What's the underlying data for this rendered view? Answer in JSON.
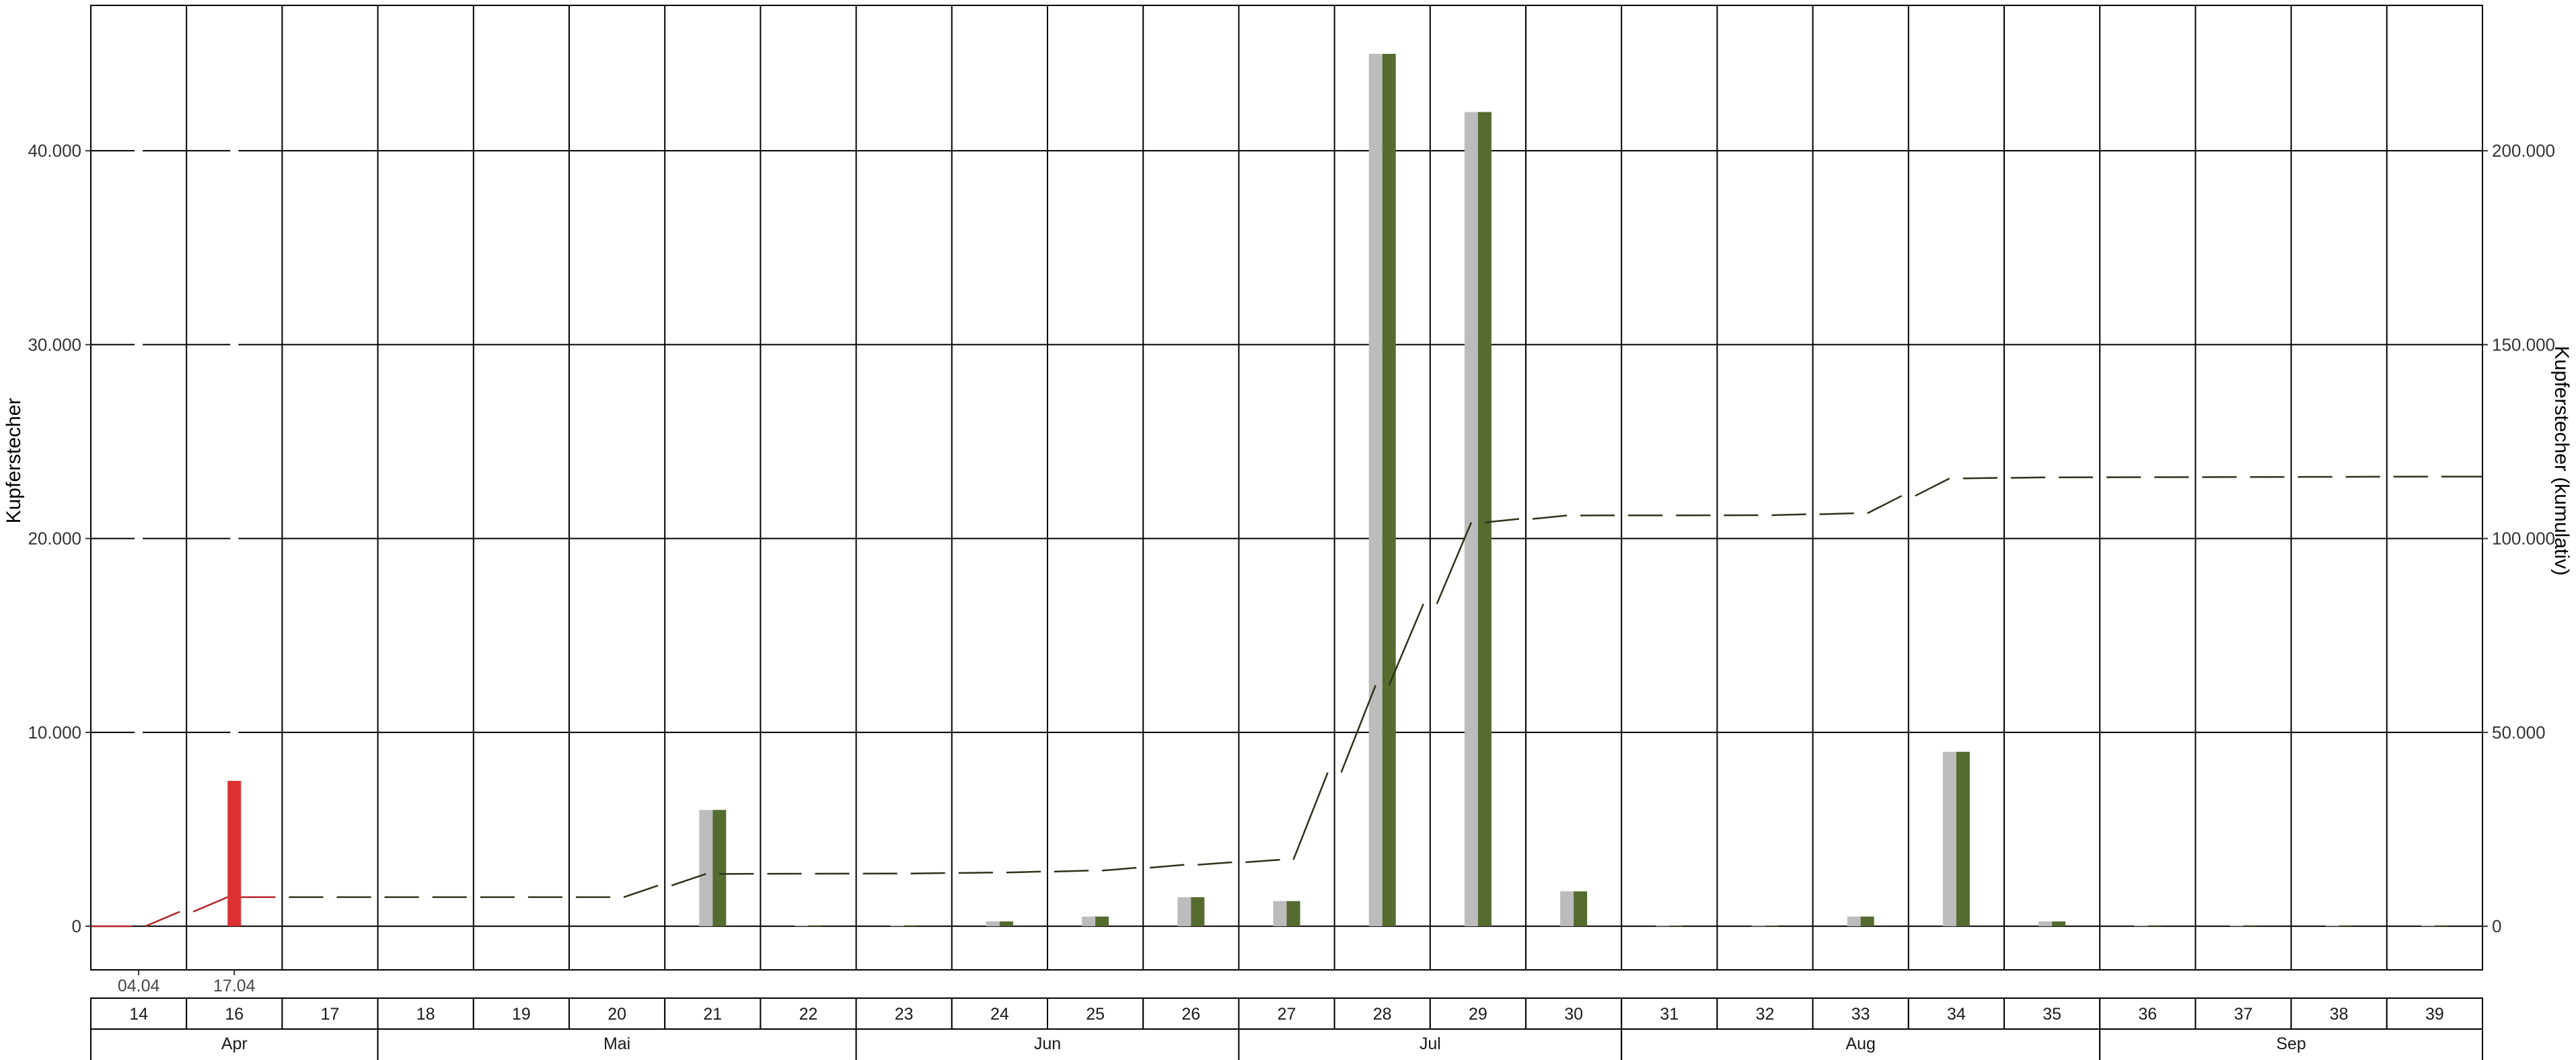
{
  "chart_data": {
    "type": "bar",
    "ylabel": "Kupferstecher",
    "ylabel_right": "Kupferstecher (kumulativ)",
    "ylim": [
      -2250,
      47500
    ],
    "ylim_right": [
      -11250,
      237500
    ],
    "yticks": [
      0,
      10000,
      20000,
      30000,
      40000
    ],
    "yticks_labels": [
      "0",
      "10.000",
      "20.000",
      "30.000",
      "40.000"
    ],
    "yticks_right": [
      0,
      50000,
      100000,
      150000,
      200000
    ],
    "yticks_right_labels": [
      "0",
      "50.000",
      "100.000",
      "150.000",
      "200.000"
    ],
    "grid": true,
    "categories": [
      "14",
      "16",
      "17",
      "18",
      "19",
      "20",
      "21",
      "22",
      "23",
      "24",
      "25",
      "26",
      "27",
      "28",
      "29",
      "30",
      "31",
      "32",
      "33",
      "34",
      "35",
      "36",
      "37",
      "38",
      "39"
    ],
    "months": [
      {
        "label": "Apr",
        "from": 0,
        "to": 3
      },
      {
        "label": "Mai",
        "from": 3,
        "to": 8
      },
      {
        "label": "Jun",
        "from": 8,
        "to": 12
      },
      {
        "label": "Jul",
        "from": 12,
        "to": 16
      },
      {
        "label": "Aug",
        "from": 16,
        "to": 21
      },
      {
        "label": "Sep",
        "from": 21,
        "to": 25
      }
    ],
    "date_labels": [
      {
        "label": "04.04",
        "index": 0
      },
      {
        "label": "17.04",
        "index": 1
      }
    ],
    "series": [
      {
        "values": [
          0,
          0,
          0,
          0,
          0,
          0,
          6000,
          50,
          50,
          250,
          500,
          1500,
          1300,
          45000,
          42000,
          1800,
          30,
          30,
          500,
          9000,
          250,
          50,
          50,
          50,
          50
        ],
        "color": "#bcbcbc"
      },
      {
        "values": [
          0,
          0,
          0,
          0,
          0,
          0,
          6000,
          50,
          50,
          250,
          500,
          1500,
          1300,
          45000,
          42000,
          1800,
          30,
          30,
          500,
          9000,
          250,
          50,
          50,
          50,
          50
        ],
        "color": "#556b2f"
      },
      {
        "values": [
          0,
          7500,
          null,
          null,
          null,
          null,
          null,
          null,
          null,
          null,
          null,
          null,
          null,
          null,
          null,
          null,
          null,
          null,
          null,
          null,
          null,
          null,
          null,
          null,
          null
        ],
        "color": "#dc3232"
      }
    ],
    "cumulative": {
      "values": [
        0,
        7500,
        7500,
        7500,
        7500,
        7500,
        13500,
        13550,
        13600,
        13850,
        14350,
        15850,
        17150,
        62150,
        104150,
        105950,
        105980,
        106010,
        106510,
        115510,
        115760,
        115810,
        115860,
        115910,
        115960
      ],
      "color": "#2d3219",
      "early_color": "#b22222"
    }
  }
}
